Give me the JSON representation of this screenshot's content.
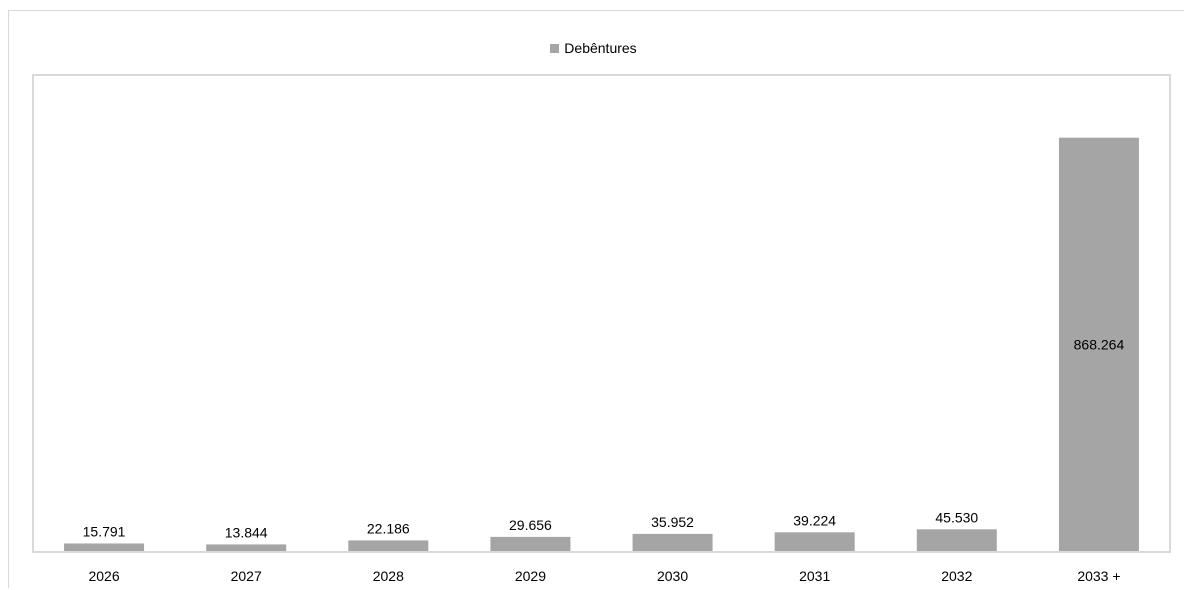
{
  "chart_data": {
    "type": "bar",
    "title": "",
    "xlabel": "",
    "ylabel": "",
    "categories": [
      "2026",
      "2027",
      "2028",
      "2029",
      "2030",
      "2031",
      "2032",
      "2033 +"
    ],
    "series": [
      {
        "name": "Debêntures",
        "values": [
          15791,
          13844,
          22186,
          29656,
          35952,
          39224,
          45530,
          868264
        ],
        "labels": [
          "15.791",
          "13.844",
          "22.186",
          "29.656",
          "35.952",
          "39.224",
          "45.530",
          "868.264"
        ],
        "color": "#a5a5a5"
      }
    ],
    "ylim": [
      0,
      1000000
    ],
    "grid": false,
    "legend_position": "top",
    "axis_visible": false
  }
}
